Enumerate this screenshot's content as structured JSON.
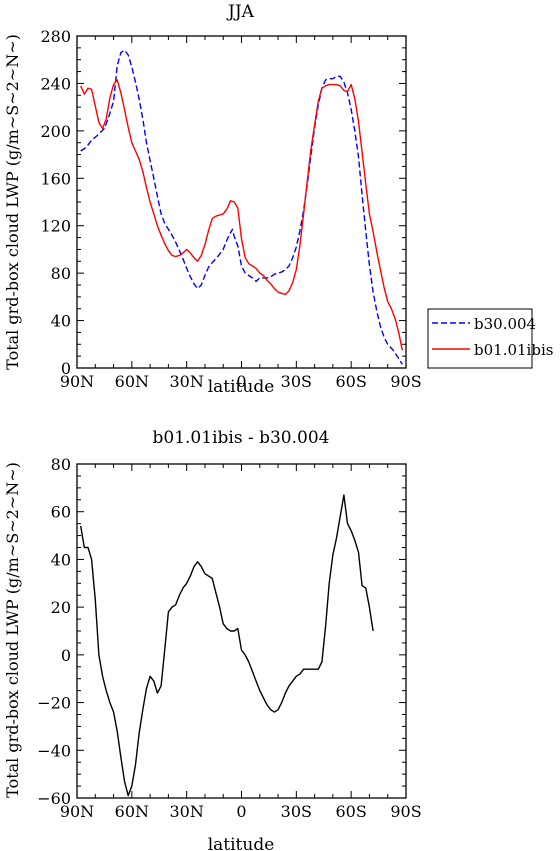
{
  "colors": {
    "b30": "#0000ff",
    "b01": "#ff0000",
    "diff": "#000000",
    "axis": "#000000"
  },
  "chart_data": [
    {
      "type": "line",
      "title": "JJA",
      "xlabel": "latitude",
      "ylabel": "Total grd-box cloud LWP (g/m~S~2~N~)",
      "xlim": [
        90,
        -90
      ],
      "ylim": [
        0,
        280
      ],
      "xticks": [
        90,
        60,
        30,
        0,
        -30,
        -60,
        -90
      ],
      "xtick_labels": [
        "90N",
        "60N",
        "30N",
        "0",
        "30S",
        "60S",
        "90S"
      ],
      "yticks": [
        0,
        40,
        80,
        120,
        160,
        200,
        240,
        280
      ],
      "ytick_labels": [
        "0",
        "40",
        "80",
        "120",
        "160",
        "200",
        "240",
        "280"
      ],
      "grid": false,
      "legend_position": "right",
      "series": [
        {
          "name": "b30.004",
          "style": "dashed",
          "color": "#0000ff",
          "points": [
            [
              88,
              183
            ],
            [
              85,
              186
            ],
            [
              82,
              192
            ],
            [
              79,
              196
            ],
            [
              75,
              202
            ],
            [
              73,
              210
            ],
            [
              70,
              225
            ],
            [
              68,
              255
            ],
            [
              66,
              266
            ],
            [
              64,
              268
            ],
            [
              62,
              264
            ],
            [
              60,
              254
            ],
            [
              58,
              241
            ],
            [
              56,
              227
            ],
            [
              54,
              210
            ],
            [
              52,
              190
            ],
            [
              50,
              175
            ],
            [
              48,
              160
            ],
            [
              46,
              145
            ],
            [
              44,
              130
            ],
            [
              42,
              122
            ],
            [
              40,
              117
            ],
            [
              38,
              112
            ],
            [
              36,
              106
            ],
            [
              34,
              99
            ],
            [
              32,
              92
            ],
            [
              30,
              84
            ],
            [
              28,
              77
            ],
            [
              26,
              71
            ],
            [
              24,
              67
            ],
            [
              22,
              70
            ],
            [
              20,
              78
            ],
            [
              18,
              85
            ],
            [
              16,
              89
            ],
            [
              14,
              92
            ],
            [
              12,
              96
            ],
            [
              10,
              100
            ],
            [
              8,
              108
            ],
            [
              6,
              114
            ],
            [
              5,
              117
            ],
            [
              4,
              111
            ],
            [
              2,
              103
            ],
            [
              0,
              86
            ],
            [
              -2,
              80
            ],
            [
              -4,
              78
            ],
            [
              -6,
              76
            ],
            [
              -8,
              73
            ],
            [
              -10,
              76
            ],
            [
              -12,
              76
            ],
            [
              -14,
              76
            ],
            [
              -16,
              77
            ],
            [
              -18,
              79
            ],
            [
              -20,
              80
            ],
            [
              -22,
              81
            ],
            [
              -24,
              83
            ],
            [
              -26,
              86
            ],
            [
              -28,
              93
            ],
            [
              -30,
              102
            ],
            [
              -32,
              116
            ],
            [
              -34,
              133
            ],
            [
              -36,
              155
            ],
            [
              -38,
              180
            ],
            [
              -40,
              203
            ],
            [
              -42,
              222
            ],
            [
              -44,
              236
            ],
            [
              -46,
              243
            ],
            [
              -48,
              244
            ],
            [
              -50,
              244
            ],
            [
              -52,
              246
            ],
            [
              -54,
              246
            ],
            [
              -56,
              241
            ],
            [
              -58,
              232
            ],
            [
              -60,
              218
            ],
            [
              -62,
              200
            ],
            [
              -64,
              178
            ],
            [
              -66,
              146
            ],
            [
              -68,
              115
            ],
            [
              -70,
              87
            ],
            [
              -72,
              64
            ],
            [
              -74,
              48
            ],
            [
              -76,
              35
            ],
            [
              -78,
              26
            ],
            [
              -80,
              20
            ],
            [
              -83,
              15
            ],
            [
              -86,
              8
            ],
            [
              -88,
              3
            ]
          ]
        },
        {
          "name": "b01.01ibis",
          "style": "solid",
          "color": "#ff0000",
          "points": [
            [
              88,
              238
            ],
            [
              86,
              231
            ],
            [
              84,
              236
            ],
            [
              82,
              235
            ],
            [
              80,
              221
            ],
            [
              78,
              207
            ],
            [
              76,
              202
            ],
            [
              74,
              210
            ],
            [
              72,
              228
            ],
            [
              70,
              239
            ],
            [
              68,
              243
            ],
            [
              66,
              232
            ],
            [
              64,
              218
            ],
            [
              62,
              203
            ],
            [
              60,
              190
            ],
            [
              58,
              183
            ],
            [
              56,
              176
            ],
            [
              54,
              166
            ],
            [
              52,
              152
            ],
            [
              50,
              140
            ],
            [
              48,
              130
            ],
            [
              46,
              120
            ],
            [
              44,
              112
            ],
            [
              42,
              105
            ],
            [
              40,
              99
            ],
            [
              38,
              95
            ],
            [
              36,
              94
            ],
            [
              34,
              95
            ],
            [
              32,
              97
            ],
            [
              30,
              100
            ],
            [
              28,
              97
            ],
            [
              26,
              93
            ],
            [
              24,
              90
            ],
            [
              22,
              95
            ],
            [
              20,
              104
            ],
            [
              18,
              116
            ],
            [
              16,
              126
            ],
            [
              14,
              128
            ],
            [
              12,
              129
            ],
            [
              10,
              130
            ],
            [
              8,
              134
            ],
            [
              6,
              141
            ],
            [
              4,
              140
            ],
            [
              2,
              135
            ],
            [
              0,
              109
            ],
            [
              -2,
              93
            ],
            [
              -4,
              88
            ],
            [
              -6,
              86
            ],
            [
              -8,
              84
            ],
            [
              -10,
              80
            ],
            [
              -12,
              78
            ],
            [
              -14,
              74
            ],
            [
              -16,
              71
            ],
            [
              -18,
              67
            ],
            [
              -20,
              64
            ],
            [
              -22,
              63
            ],
            [
              -24,
              62
            ],
            [
              -26,
              65
            ],
            [
              -28,
              72
            ],
            [
              -30,
              83
            ],
            [
              -32,
              104
            ],
            [
              -34,
              130
            ],
            [
              -36,
              158
            ],
            [
              -38,
              185
            ],
            [
              -40,
              205
            ],
            [
              -42,
              225
            ],
            [
              -44,
              236
            ],
            [
              -46,
              238
            ],
            [
              -48,
              239
            ],
            [
              -50,
              239
            ],
            [
              -52,
              239
            ],
            [
              -54,
              238
            ],
            [
              -56,
              234
            ],
            [
              -58,
              233
            ],
            [
              -60,
              239
            ],
            [
              -62,
              227
            ],
            [
              -64,
              208
            ],
            [
              -66,
              182
            ],
            [
              -68,
              155
            ],
            [
              -70,
              130
            ],
            [
              -72,
              115
            ],
            [
              -74,
              98
            ],
            [
              -76,
              83
            ],
            [
              -78,
              68
            ],
            [
              -80,
              56
            ],
            [
              -82,
              50
            ],
            [
              -84,
              42
            ],
            [
              -86,
              30
            ],
            [
              -88,
              15
            ]
          ]
        }
      ]
    },
    {
      "type": "line",
      "title": "b01.01ibis - b30.004",
      "xlabel": "latitude",
      "ylabel": "Total grd-box cloud LWP (g/m~S~2~N~)",
      "xlim": [
        90,
        -90
      ],
      "ylim": [
        -60,
        80
      ],
      "xticks": [
        90,
        60,
        30,
        0,
        -30,
        -60,
        -90
      ],
      "xtick_labels": [
        "90N",
        "60N",
        "30N",
        "0",
        "30S",
        "60S",
        "90S"
      ],
      "yticks": [
        -60,
        -40,
        -20,
        0,
        20,
        40,
        60,
        80
      ],
      "ytick_labels": [
        "−60",
        "−40",
        "−20",
        "0",
        "20",
        "40",
        "60",
        "80"
      ],
      "grid": false,
      "series": [
        {
          "style": "solid",
          "color": "#000000",
          "points": [
            [
              88,
              54
            ],
            [
              86,
              45
            ],
            [
              84,
              45
            ],
            [
              82,
              40
            ],
            [
              80,
              23
            ],
            [
              78,
              0
            ],
            [
              76,
              -9
            ],
            [
              74,
              -15
            ],
            [
              72,
              -20
            ],
            [
              70,
              -24
            ],
            [
              68,
              -32
            ],
            [
              66,
              -43
            ],
            [
              64,
              -53
            ],
            [
              62,
              -59
            ],
            [
              60,
              -55
            ],
            [
              58,
              -46
            ],
            [
              56,
              -33
            ],
            [
              54,
              -23
            ],
            [
              52,
              -14
            ],
            [
              50,
              -9
            ],
            [
              48,
              -11
            ],
            [
              46,
              -16
            ],
            [
              44,
              -13
            ],
            [
              42,
              2
            ],
            [
              40,
              18
            ],
            [
              38,
              20
            ],
            [
              36,
              21
            ],
            [
              34,
              25
            ],
            [
              32,
              28
            ],
            [
              30,
              30
            ],
            [
              28,
              33
            ],
            [
              26,
              37
            ],
            [
              24,
              39
            ],
            [
              22,
              37
            ],
            [
              20,
              34
            ],
            [
              18,
              33
            ],
            [
              16,
              32
            ],
            [
              14,
              26
            ],
            [
              12,
              20
            ],
            [
              10,
              13
            ],
            [
              8,
              11
            ],
            [
              6,
              10
            ],
            [
              4,
              10
            ],
            [
              2,
              11
            ],
            [
              0,
              2
            ],
            [
              -2,
              0
            ],
            [
              -4,
              -3
            ],
            [
              -6,
              -7
            ],
            [
              -8,
              -11
            ],
            [
              -10,
              -15
            ],
            [
              -12,
              -18
            ],
            [
              -14,
              -21
            ],
            [
              -16,
              -23
            ],
            [
              -18,
              -24
            ],
            [
              -20,
              -23
            ],
            [
              -22,
              -20
            ],
            [
              -24,
              -16
            ],
            [
              -26,
              -13
            ],
            [
              -28,
              -11
            ],
            [
              -30,
              -9
            ],
            [
              -32,
              -8
            ],
            [
              -34,
              -6
            ],
            [
              -36,
              -6
            ],
            [
              -38,
              -6
            ],
            [
              -40,
              -6
            ],
            [
              -42,
              -6
            ],
            [
              -44,
              -3
            ],
            [
              -46,
              12
            ],
            [
              -48,
              30
            ],
            [
              -50,
              42
            ],
            [
              -52,
              49
            ],
            [
              -54,
              58
            ],
            [
              -56,
              67
            ],
            [
              -58,
              55
            ],
            [
              -60,
              52
            ],
            [
              -62,
              48
            ],
            [
              -64,
              43
            ],
            [
              -66,
              29
            ],
            [
              -68,
              28
            ],
            [
              -70,
              20
            ],
            [
              -72,
              10
            ]
          ]
        }
      ]
    }
  ]
}
